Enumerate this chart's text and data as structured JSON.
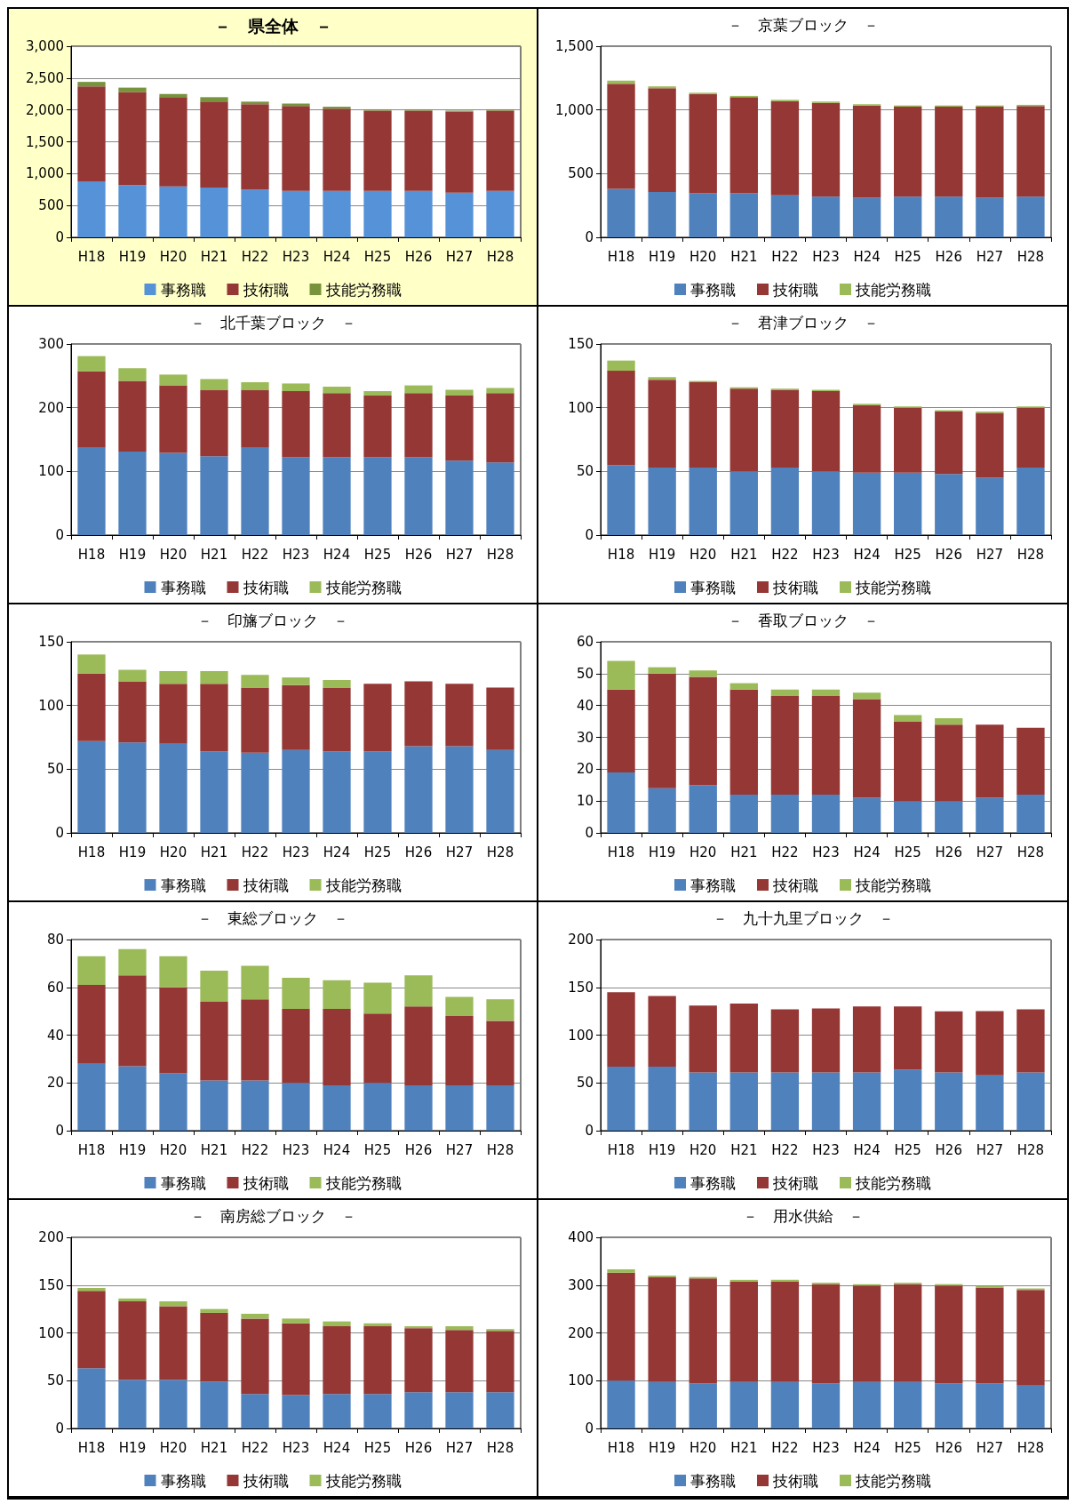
{
  "chart_data": [
    {
      "type": "bar",
      "title": "－　県全体　－",
      "stacked": true,
      "grid": "y",
      "legend": "bottom",
      "categories": [
        "H18",
        "H19",
        "H20",
        "H21",
        "H22",
        "H23",
        "H24",
        "H25",
        "H26",
        "H27",
        "H28"
      ],
      "ylim": [
        0,
        3000
      ],
      "yticks": [
        0,
        500,
        {
          "value": 1000,
          "label": "1,000"
        },
        {
          "value": 1500,
          "label": "1,500"
        },
        {
          "value": 2000,
          "label": "2,000"
        },
        {
          "value": 2500,
          "label": "2,500"
        },
        {
          "value": 3000,
          "label": "3,000"
        }
      ],
      "series": [
        {
          "name": "事務職",
          "color": "#5592d8",
          "values": [
            880,
            820,
            800,
            780,
            750,
            730,
            730,
            730,
            730,
            700,
            730
          ]
        },
        {
          "name": "技術職",
          "color": "#953735",
          "values": [
            1490,
            1460,
            1400,
            1350,
            1340,
            1330,
            1290,
            1260,
            1260,
            1270,
            1260
          ]
        },
        {
          "name": "技能労務職",
          "color": "#77933c",
          "values": [
            70,
            70,
            50,
            70,
            40,
            40,
            30,
            20,
            20,
            20,
            20
          ]
        }
      ]
    },
    {
      "type": "bar",
      "title": "－　京葉ブロック　－",
      "stacked": true,
      "grid": "y",
      "legend": "bottom",
      "categories": [
        "H18",
        "H19",
        "H20",
        "H21",
        "H22",
        "H23",
        "H24",
        "H25",
        "H26",
        "H27",
        "H28"
      ],
      "ylim": [
        0,
        1500
      ],
      "yticks": [
        0,
        500,
        {
          "value": 1000,
          "label": "1,000"
        },
        {
          "value": 1500,
          "label": "1,500"
        }
      ],
      "series": [
        {
          "name": "事務職",
          "color": "#4f81bd",
          "values": [
            380,
            355,
            345,
            345,
            330,
            320,
            310,
            320,
            320,
            310,
            320
          ]
        },
        {
          "name": "技術職",
          "color": "#953735",
          "values": [
            825,
            815,
            780,
            755,
            740,
            735,
            725,
            705,
            705,
            715,
            710
          ]
        },
        {
          "name": "技能労務職",
          "color": "#9bbb59",
          "values": [
            25,
            15,
            10,
            10,
            10,
            10,
            10,
            10,
            10,
            10,
            10
          ]
        }
      ]
    },
    {
      "type": "bar",
      "title": "－　北千葉ブロック　－",
      "stacked": true,
      "grid": "y",
      "legend": "bottom",
      "categories": [
        "H18",
        "H19",
        "H20",
        "H21",
        "H22",
        "H23",
        "H24",
        "H25",
        "H26",
        "H27",
        "H28"
      ],
      "ylim": [
        0,
        300
      ],
      "yticks": [
        0,
        100,
        200,
        300
      ],
      "series": [
        {
          "name": "事務職",
          "color": "#4f81bd",
          "values": [
            137,
            131,
            129,
            124,
            137,
            122,
            122,
            122,
            122,
            117,
            114
          ]
        },
        {
          "name": "技術職",
          "color": "#953735",
          "values": [
            120,
            111,
            106,
            104,
            91,
            104,
            101,
            97,
            101,
            102,
            109
          ]
        },
        {
          "name": "技能労務職",
          "color": "#9bbb59",
          "values": [
            24,
            20,
            17,
            17,
            12,
            12,
            10,
            7,
            12,
            9,
            8
          ]
        }
      ]
    },
    {
      "type": "bar",
      "title": "－　君津ブロック　－",
      "stacked": true,
      "grid": "y",
      "legend": "bottom",
      "categories": [
        "H18",
        "H19",
        "H20",
        "H21",
        "H22",
        "H23",
        "H24",
        "H25",
        "H26",
        "H27",
        "H28"
      ],
      "ylim": [
        0,
        150
      ],
      "yticks": [
        0,
        50,
        100,
        150
      ],
      "series": [
        {
          "name": "事務職",
          "color": "#4f81bd",
          "values": [
            55,
            53,
            53,
            50,
            53,
            50,
            49,
            49,
            48,
            45,
            53
          ]
        },
        {
          "name": "技術職",
          "color": "#953735",
          "values": [
            74,
            69,
            67,
            65,
            61,
            63,
            53,
            51,
            49,
            51,
            47
          ]
        },
        {
          "name": "技能労務職",
          "color": "#9bbb59",
          "values": [
            8,
            2,
            1,
            1,
            1,
            1,
            1,
            1,
            1,
            1,
            1
          ]
        }
      ]
    },
    {
      "type": "bar",
      "title": "－　印旛ブロック　－",
      "stacked": true,
      "grid": "y",
      "legend": "bottom",
      "categories": [
        "H18",
        "H19",
        "H20",
        "H21",
        "H22",
        "H23",
        "H24",
        "H25",
        "H26",
        "H27",
        "H28"
      ],
      "ylim": [
        0,
        150
      ],
      "yticks": [
        0,
        50,
        100,
        150
      ],
      "series": [
        {
          "name": "事務職",
          "color": "#4f81bd",
          "values": [
            72,
            71,
            70,
            64,
            63,
            65,
            64,
            64,
            68,
            68,
            65
          ]
        },
        {
          "name": "技術職",
          "color": "#953735",
          "values": [
            53,
            48,
            47,
            53,
            51,
            51,
            50,
            53,
            51,
            49,
            49
          ]
        },
        {
          "name": "技能労務職",
          "color": "#9bbb59",
          "values": [
            15,
            9,
            10,
            10,
            10,
            6,
            6,
            0,
            0,
            0,
            0
          ]
        }
      ]
    },
    {
      "type": "bar",
      "title": "－　香取ブロック　－",
      "stacked": true,
      "grid": "y",
      "legend": "bottom",
      "categories": [
        "H18",
        "H19",
        "H20",
        "H21",
        "H22",
        "H23",
        "H24",
        "H25",
        "H26",
        "H27",
        "H28"
      ],
      "ylim": [
        0,
        60
      ],
      "yticks": [
        0,
        10,
        20,
        30,
        40,
        50,
        60
      ],
      "series": [
        {
          "name": "事務職",
          "color": "#4f81bd",
          "values": [
            19,
            14,
            15,
            12,
            12,
            12,
            11,
            10,
            10,
            11,
            12
          ]
        },
        {
          "name": "技術職",
          "color": "#953735",
          "values": [
            26,
            36,
            34,
            33,
            31,
            31,
            31,
            25,
            24,
            23,
            21
          ]
        },
        {
          "name": "技能労務職",
          "color": "#9bbb59",
          "values": [
            9,
            2,
            2,
            2,
            2,
            2,
            2,
            2,
            2,
            0,
            0
          ]
        }
      ]
    },
    {
      "type": "bar",
      "title": "－　東総ブロック　－",
      "stacked": true,
      "grid": "y",
      "legend": "bottom",
      "categories": [
        "H18",
        "H19",
        "H20",
        "H21",
        "H22",
        "H23",
        "H24",
        "H25",
        "H26",
        "H27",
        "H28"
      ],
      "ylim": [
        0,
        80
      ],
      "yticks": [
        0,
        20,
        40,
        60,
        80
      ],
      "series": [
        {
          "name": "事務職",
          "color": "#4f81bd",
          "values": [
            28,
            27,
            24,
            21,
            21,
            20,
            19,
            20,
            19,
            19,
            19
          ]
        },
        {
          "name": "技術職",
          "color": "#953735",
          "values": [
            33,
            38,
            36,
            33,
            34,
            31,
            32,
            29,
            33,
            29,
            27
          ]
        },
        {
          "name": "技能労務職",
          "color": "#9bbb59",
          "values": [
            12,
            11,
            13,
            13,
            14,
            13,
            12,
            13,
            13,
            8,
            9
          ]
        }
      ]
    },
    {
      "type": "bar",
      "title": "－　九十九里ブロック　－",
      "stacked": true,
      "grid": "y",
      "legend": "bottom",
      "categories": [
        "H18",
        "H19",
        "H20",
        "H21",
        "H22",
        "H23",
        "H24",
        "H25",
        "H26",
        "H27",
        "H28"
      ],
      "ylim": [
        0,
        200
      ],
      "yticks": [
        0,
        50,
        100,
        150,
        200
      ],
      "series": [
        {
          "name": "事務職",
          "color": "#4f81bd",
          "values": [
            67,
            67,
            61,
            61,
            61,
            61,
            61,
            64,
            61,
            58,
            61
          ]
        },
        {
          "name": "技術職",
          "color": "#953735",
          "values": [
            78,
            74,
            70,
            72,
            66,
            67,
            69,
            66,
            64,
            67,
            66
          ]
        },
        {
          "name": "技能労務職",
          "color": "#9bbb59",
          "values": [
            0,
            0,
            0,
            0,
            0,
            0,
            0,
            0,
            0,
            0,
            0
          ]
        }
      ]
    },
    {
      "type": "bar",
      "title": "－　南房総ブロック　－",
      "stacked": true,
      "grid": "y",
      "legend": "bottom",
      "categories": [
        "H18",
        "H19",
        "H20",
        "H21",
        "H22",
        "H23",
        "H24",
        "H25",
        "H26",
        "H27",
        "H28"
      ],
      "ylim": [
        0,
        200
      ],
      "yticks": [
        0,
        50,
        100,
        150,
        200
      ],
      "series": [
        {
          "name": "事務職",
          "color": "#4f81bd",
          "values": [
            63,
            51,
            51,
            49,
            36,
            35,
            36,
            36,
            38,
            38,
            38
          ]
        },
        {
          "name": "技術職",
          "color": "#953735",
          "values": [
            81,
            82,
            77,
            72,
            79,
            75,
            71,
            71,
            67,
            65,
            64
          ]
        },
        {
          "name": "技能労務職",
          "color": "#9bbb59",
          "values": [
            3,
            3,
            5,
            4,
            5,
            5,
            5,
            3,
            2,
            4,
            2
          ]
        }
      ]
    },
    {
      "type": "bar",
      "title": "－　用水供給　－",
      "stacked": true,
      "grid": "y",
      "legend": "bottom",
      "categories": [
        "H18",
        "H19",
        "H20",
        "H21",
        "H22",
        "H23",
        "H24",
        "H25",
        "H26",
        "H27",
        "H28"
      ],
      "ylim": [
        0,
        400
      ],
      "yticks": [
        0,
        100,
        200,
        300,
        400
      ],
      "series": [
        {
          "name": "事務職",
          "color": "#4f81bd",
          "values": [
            100,
            97,
            94,
            97,
            97,
            94,
            97,
            97,
            94,
            94,
            90
          ]
        },
        {
          "name": "技術職",
          "color": "#953735",
          "values": [
            226,
            220,
            220,
            211,
            211,
            208,
            202,
            205,
            205,
            201,
            200
          ]
        },
        {
          "name": "技能労務職",
          "color": "#9bbb59",
          "values": [
            7,
            3,
            3,
            3,
            3,
            3,
            3,
            3,
            3,
            3,
            3
          ]
        }
      ]
    }
  ]
}
